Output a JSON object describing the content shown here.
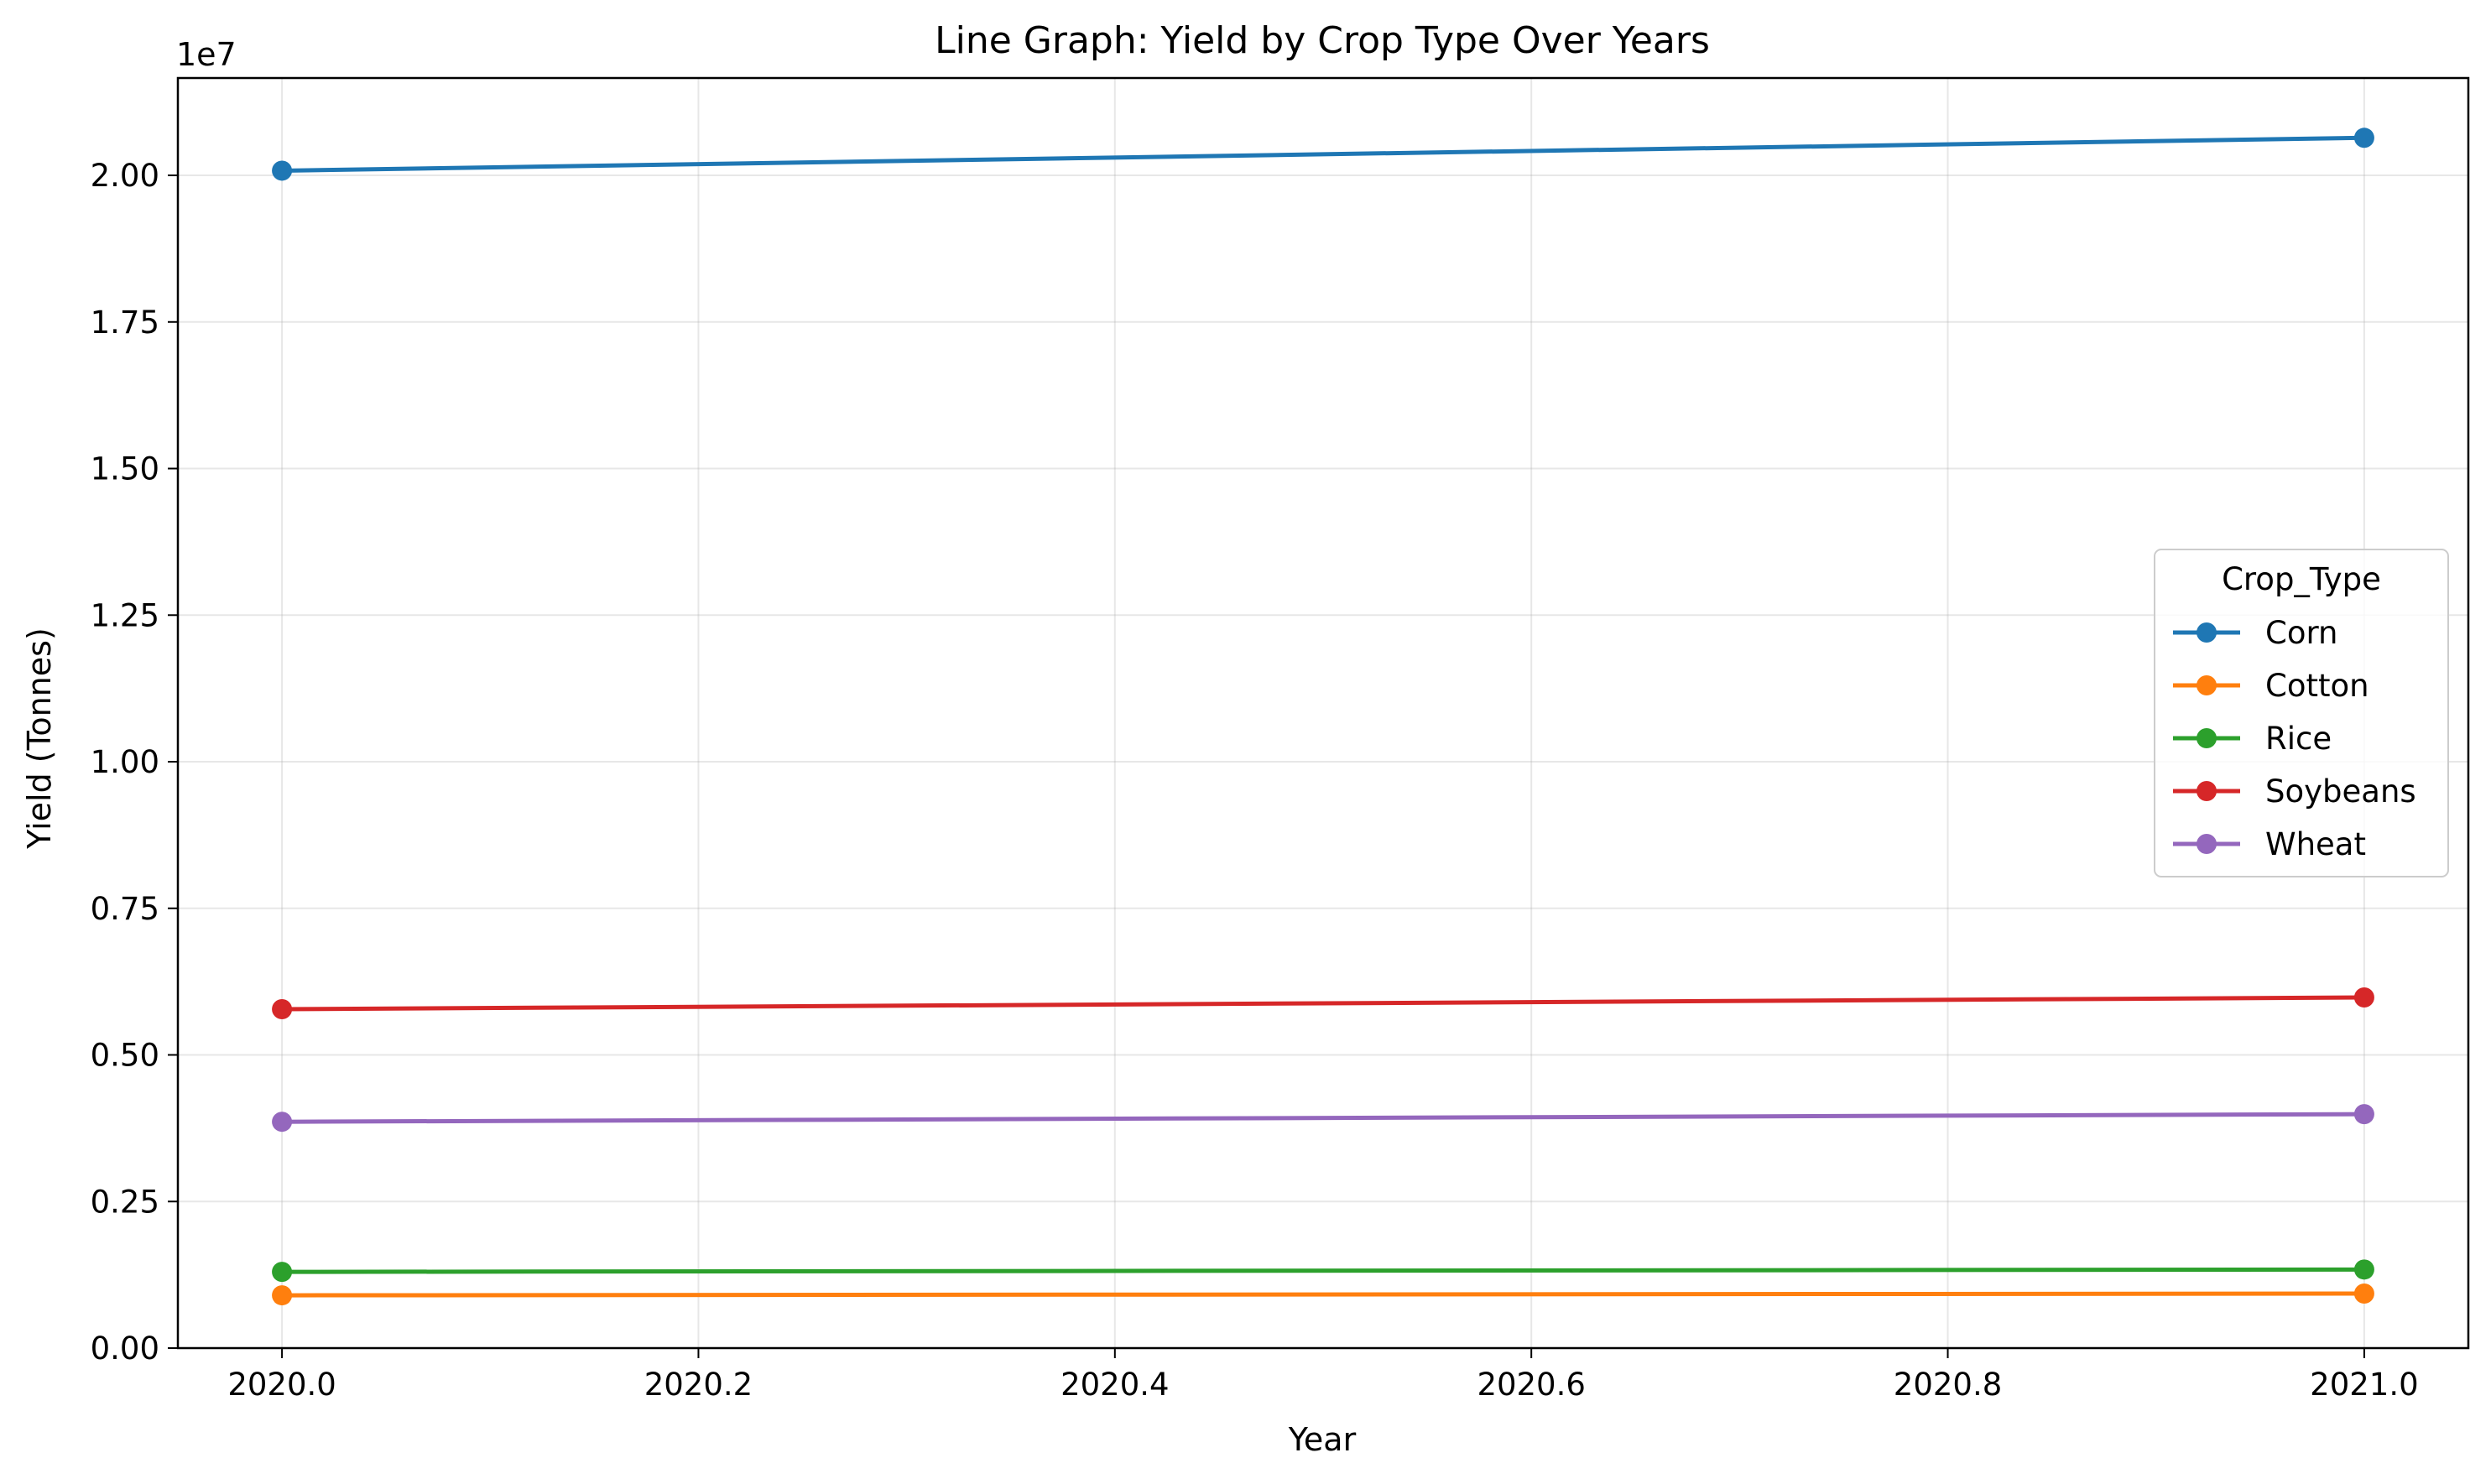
{
  "chart_data": {
    "type": "line",
    "title": "Line Graph: Yield by Crop Type Over Years",
    "xlabel": "Year",
    "ylabel": "Yield (Tonnes)",
    "y_offset_label": "1e7",
    "x": [
      2020,
      2021
    ],
    "xlim": [
      2019.95,
      2021.05
    ],
    "ylim": [
      0,
      21660000
    ],
    "x_ticks": [
      2020.0,
      2020.2,
      2020.4,
      2020.6,
      2020.8,
      2021.0
    ],
    "x_tick_labels": [
      "2020.0",
      "2020.2",
      "2020.4",
      "2020.6",
      "2020.8",
      "2021.0"
    ],
    "y_ticks": [
      0,
      2500000,
      5000000,
      7500000,
      10000000,
      12500000,
      15000000,
      17500000,
      20000000
    ],
    "y_tick_labels": [
      "0.00",
      "0.25",
      "0.50",
      "0.75",
      "1.00",
      "1.25",
      "1.50",
      "1.75",
      "2.00"
    ],
    "grid": true,
    "legend": {
      "title": "Crop_Type",
      "placement": "center-right"
    },
    "series": [
      {
        "name": "Corn",
        "color": "#1f77b4",
        "values": [
          20080000,
          20640000
        ]
      },
      {
        "name": "Cotton",
        "color": "#ff7f0e",
        "values": [
          900000,
          930000
        ]
      },
      {
        "name": "Rice",
        "color": "#2ca02c",
        "values": [
          1300000,
          1340000
        ]
      },
      {
        "name": "Soybeans",
        "color": "#d62728",
        "values": [
          5780000,
          5980000
        ]
      },
      {
        "name": "Wheat",
        "color": "#9467bd",
        "values": [
          3860000,
          3990000
        ]
      }
    ]
  }
}
